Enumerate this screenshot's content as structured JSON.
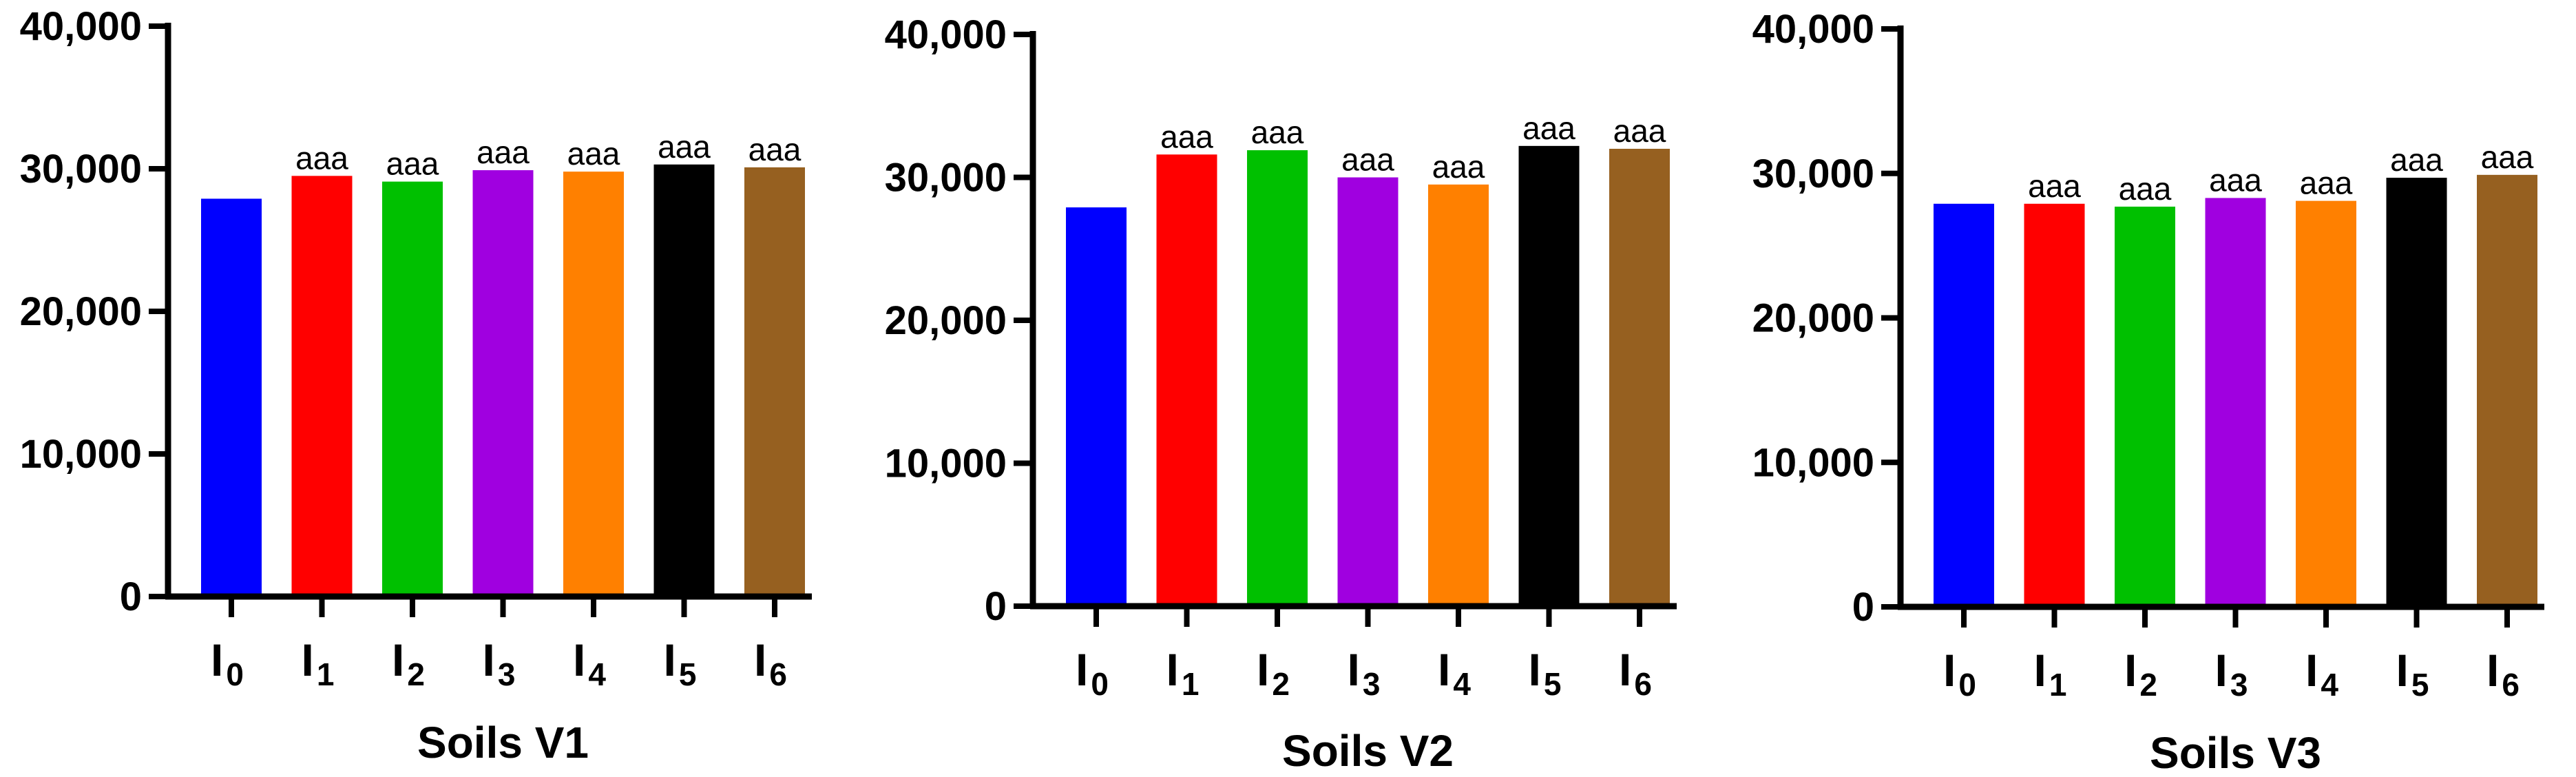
{
  "chart_data": [
    {
      "type": "bar",
      "title": "Soils V1",
      "categories": [
        {
          "main": "I",
          "sub": "0"
        },
        {
          "main": "I",
          "sub": "1"
        },
        {
          "main": "I",
          "sub": "2"
        },
        {
          "main": "I",
          "sub": "3"
        },
        {
          "main": "I",
          "sub": "4"
        },
        {
          "main": "I",
          "sub": "5"
        },
        {
          "main": "I",
          "sub": "6"
        }
      ],
      "values": [
        27900,
        29500,
        29100,
        29900,
        29800,
        30300,
        30100
      ],
      "bar_labels": [
        "",
        "aaa",
        "aaa",
        "aaa",
        "aaa",
        "aaa",
        "aaa"
      ],
      "colors": [
        "#0000FF",
        "#FF0000",
        "#00C000",
        "#A000E0",
        "#FF8000",
        "#000000",
        "#966020"
      ],
      "ylim": [
        0,
        40000
      ],
      "yticks": [
        0,
        10000,
        20000,
        30000,
        40000
      ],
      "ytick_labels": [
        "0",
        "10,000",
        "20,000",
        "30,000",
        "40,000"
      ],
      "xlabel": "",
      "ylabel": "",
      "grid": false
    },
    {
      "type": "bar",
      "title": "Soils V2",
      "categories": [
        {
          "main": "I",
          "sub": "0"
        },
        {
          "main": "I",
          "sub": "1"
        },
        {
          "main": "I",
          "sub": "2"
        },
        {
          "main": "I",
          "sub": "3"
        },
        {
          "main": "I",
          "sub": "4"
        },
        {
          "main": "I",
          "sub": "5"
        },
        {
          "main": "I",
          "sub": "6"
        }
      ],
      "values": [
        27900,
        31600,
        31900,
        30000,
        29500,
        32200,
        32000
      ],
      "bar_labels": [
        "",
        "aaa",
        "aaa",
        "aaa",
        "aaa",
        "aaa",
        "aaa"
      ],
      "colors": [
        "#0000FF",
        "#FF0000",
        "#00C000",
        "#A000E0",
        "#FF8000",
        "#000000",
        "#966020"
      ],
      "ylim": [
        0,
        40000
      ],
      "yticks": [
        0,
        10000,
        20000,
        30000,
        40000
      ],
      "ytick_labels": [
        "0",
        "10,000",
        "20,000",
        "30,000",
        "40,000"
      ],
      "xlabel": "",
      "ylabel": "",
      "grid": false
    },
    {
      "type": "bar",
      "title": "Soils V3",
      "categories": [
        {
          "main": "I",
          "sub": "0"
        },
        {
          "main": "I",
          "sub": "1"
        },
        {
          "main": "I",
          "sub": "2"
        },
        {
          "main": "I",
          "sub": "3"
        },
        {
          "main": "I",
          "sub": "4"
        },
        {
          "main": "I",
          "sub": "5"
        },
        {
          "main": "I",
          "sub": "6"
        }
      ],
      "values": [
        27900,
        27900,
        27700,
        28300,
        28100,
        29700,
        29900
      ],
      "bar_labels": [
        "",
        "aaa",
        "aaa",
        "aaa",
        "aaa",
        "aaa",
        "aaa"
      ],
      "colors": [
        "#0000FF",
        "#FF0000",
        "#00C000",
        "#A000E0",
        "#FF8000",
        "#000000",
        "#966020"
      ],
      "ylim": [
        0,
        40000
      ],
      "yticks": [
        0,
        10000,
        20000,
        30000,
        40000
      ],
      "ytick_labels": [
        "0",
        "10,000",
        "20,000",
        "30,000",
        "40,000"
      ],
      "xlabel": "",
      "ylabel": "",
      "grid": false
    }
  ]
}
